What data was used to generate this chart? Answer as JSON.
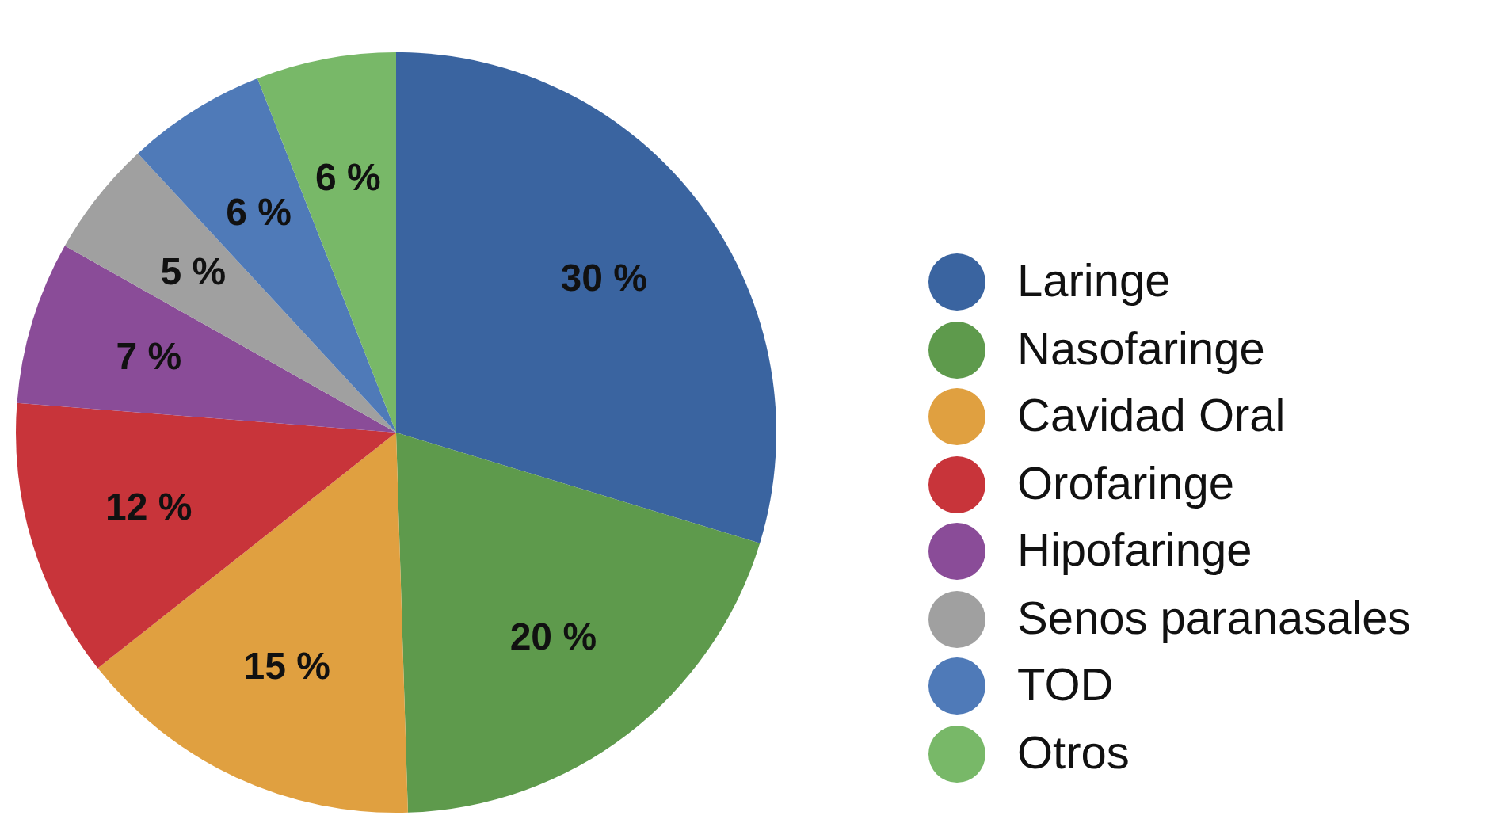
{
  "chart_data": {
    "type": "pie",
    "categories": [
      "Laringe",
      "Nasofaringe",
      "Cavidad Oral",
      "Orofaringe",
      "Hipofaringe",
      "Senos paranasales",
      "TOD",
      "Otros"
    ],
    "values": [
      30,
      20,
      15,
      12,
      7,
      5,
      6,
      6
    ],
    "value_labels": [
      "30 %",
      "20 %",
      "15 %",
      "12 %",
      "7 %",
      "5 %",
      "6 %",
      "6 %"
    ],
    "colors": [
      "#3a64a0",
      "#5e9a4c",
      "#e0a040",
      "#c8343a",
      "#8a4c98",
      "#a0a0a0",
      "#4f7ab8",
      "#78b868"
    ],
    "legend": "right"
  }
}
